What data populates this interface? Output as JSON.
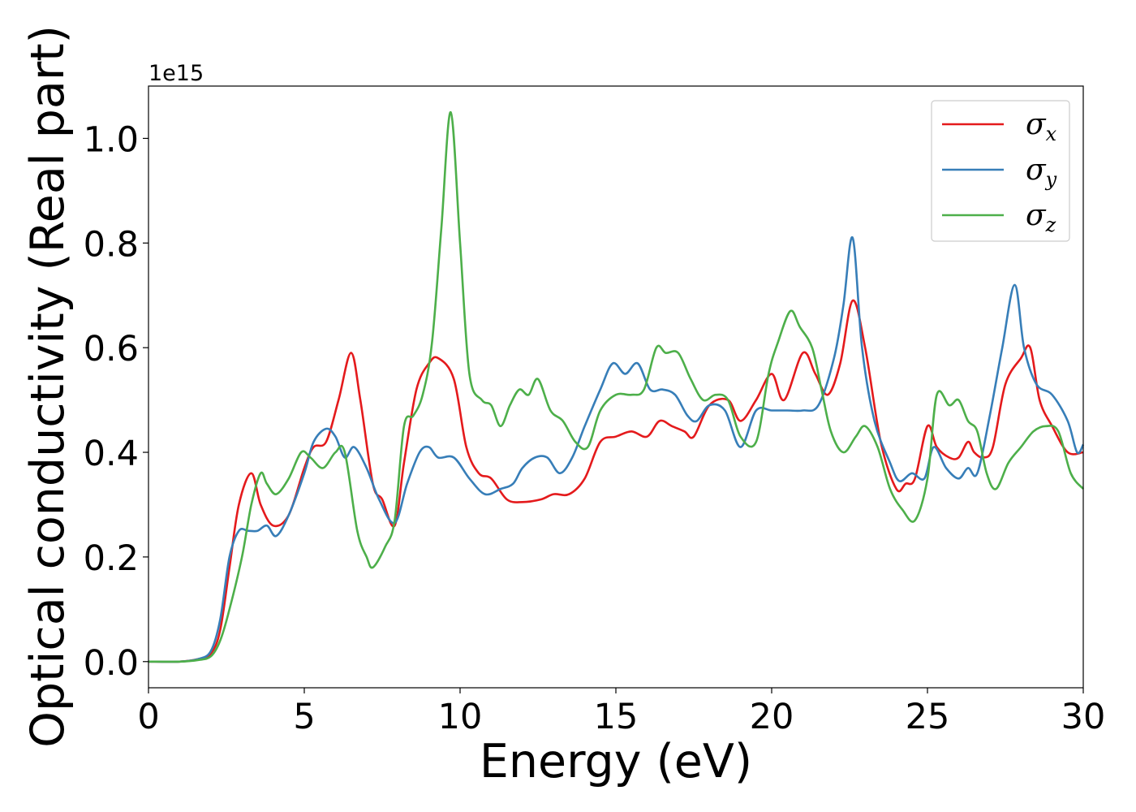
{
  "chart_data": {
    "type": "line",
    "xlabel": "Energy (eV)",
    "ylabel": "Optical conductivity (Real part)",
    "offset_text": "1e15",
    "xlim": [
      0,
      30
    ],
    "ylim": [
      -0.05,
      1.1
    ],
    "x_ticks": [
      0,
      5,
      10,
      15,
      20,
      25,
      30
    ],
    "x_tick_labels": [
      "0",
      "5",
      "10",
      "15",
      "20",
      "25",
      "30"
    ],
    "y_ticks": [
      0.0,
      0.2,
      0.4,
      0.6,
      0.8,
      1.0
    ],
    "y_tick_labels": [
      "0.0",
      "0.2",
      "0.4",
      "0.6",
      "0.8",
      "1.0"
    ],
    "grid": false,
    "legend_position": "top-right",
    "series": [
      {
        "name": "σx",
        "symbol": "σ",
        "sub": "x",
        "color": "#e41a1c",
        "x": [
          0,
          1,
          1.6,
          2,
          2.3,
          2.6,
          2.9,
          3.3,
          3.6,
          4.0,
          4.5,
          5.0,
          5.3,
          5.7,
          6.1,
          6.5,
          6.8,
          7.2,
          7.5,
          7.9,
          8.2,
          8.6,
          9.0,
          9.3,
          9.8,
          10.2,
          10.6,
          11.0,
          11.5,
          12.0,
          12.6,
          13.0,
          13.5,
          14.0,
          14.5,
          15.0,
          15.5,
          16.0,
          16.4,
          16.8,
          17.2,
          17.5,
          18.0,
          18.6,
          19.0,
          19.5,
          20.0,
          20.4,
          21.0,
          21.4,
          21.8,
          22.2,
          22.6,
          23.0,
          23.5,
          24.0,
          24.3,
          24.6,
          25.0,
          25.3,
          25.7,
          26.0,
          26.3,
          26.5,
          26.8,
          27.1,
          27.5,
          28.0,
          28.3,
          28.6,
          29.0,
          29.5,
          30.0
        ],
        "values": [
          0.0,
          0.0,
          0.005,
          0.015,
          0.06,
          0.18,
          0.3,
          0.36,
          0.3,
          0.26,
          0.28,
          0.37,
          0.41,
          0.42,
          0.5,
          0.59,
          0.5,
          0.34,
          0.31,
          0.26,
          0.38,
          0.52,
          0.57,
          0.58,
          0.54,
          0.41,
          0.36,
          0.35,
          0.31,
          0.305,
          0.31,
          0.32,
          0.32,
          0.35,
          0.42,
          0.43,
          0.44,
          0.43,
          0.46,
          0.45,
          0.44,
          0.43,
          0.49,
          0.5,
          0.46,
          0.5,
          0.55,
          0.5,
          0.59,
          0.55,
          0.51,
          0.57,
          0.69,
          0.6,
          0.42,
          0.33,
          0.34,
          0.35,
          0.45,
          0.41,
          0.39,
          0.39,
          0.42,
          0.4,
          0.39,
          0.41,
          0.53,
          0.58,
          0.6,
          0.5,
          0.45,
          0.4,
          0.4
        ]
      },
      {
        "name": "σy",
        "symbol": "σ",
        "sub": "y",
        "color": "#377eb8",
        "x": [
          0,
          1,
          1.6,
          2,
          2.3,
          2.6,
          2.9,
          3.2,
          3.5,
          3.8,
          4.1,
          4.5,
          5.0,
          5.3,
          5.7,
          6.0,
          6.3,
          6.6,
          7.0,
          7.4,
          7.9,
          8.3,
          8.7,
          9.0,
          9.3,
          9.8,
          10.3,
          10.8,
          11.3,
          11.7,
          12.0,
          12.4,
          12.8,
          13.2,
          13.6,
          14.0,
          14.5,
          14.9,
          15.3,
          15.7,
          16.1,
          16.5,
          16.9,
          17.3,
          17.6,
          18.0,
          18.5,
          19.0,
          19.5,
          20.0,
          20.5,
          21.0,
          21.5,
          22.0,
          22.3,
          22.6,
          22.9,
          23.3,
          23.8,
          24.1,
          24.5,
          24.9,
          25.2,
          25.6,
          26.0,
          26.3,
          26.6,
          27.0,
          27.4,
          27.8,
          28.1,
          28.5,
          29.0,
          29.5,
          29.8,
          30.0
        ],
        "values": [
          0.0,
          0.0,
          0.005,
          0.02,
          0.08,
          0.2,
          0.25,
          0.25,
          0.25,
          0.26,
          0.24,
          0.28,
          0.36,
          0.42,
          0.445,
          0.43,
          0.39,
          0.41,
          0.37,
          0.31,
          0.265,
          0.34,
          0.4,
          0.41,
          0.39,
          0.39,
          0.35,
          0.32,
          0.33,
          0.34,
          0.37,
          0.39,
          0.39,
          0.36,
          0.39,
          0.45,
          0.52,
          0.57,
          0.55,
          0.57,
          0.52,
          0.52,
          0.51,
          0.47,
          0.46,
          0.49,
          0.48,
          0.41,
          0.48,
          0.48,
          0.48,
          0.48,
          0.49,
          0.58,
          0.68,
          0.81,
          0.6,
          0.46,
          0.38,
          0.345,
          0.36,
          0.35,
          0.41,
          0.37,
          0.35,
          0.37,
          0.36,
          0.47,
          0.6,
          0.72,
          0.6,
          0.53,
          0.51,
          0.46,
          0.4,
          0.415
        ]
      },
      {
        "name": "σz",
        "symbol": "σ",
        "sub": "z",
        "color": "#4daf4a",
        "x": [
          0,
          1,
          1.6,
          2,
          2.3,
          2.6,
          3.0,
          3.3,
          3.6,
          3.8,
          4.1,
          4.5,
          4.9,
          5.2,
          5.6,
          6.0,
          6.3,
          6.7,
          7.0,
          7.2,
          7.6,
          7.9,
          8.2,
          8.5,
          8.8,
          9.1,
          9.4,
          9.7,
          10.0,
          10.3,
          10.7,
          11.0,
          11.3,
          11.6,
          11.9,
          12.2,
          12.5,
          12.9,
          13.3,
          13.7,
          14.1,
          14.5,
          15.0,
          15.5,
          15.9,
          16.3,
          16.6,
          17.0,
          17.4,
          17.8,
          18.2,
          18.6,
          19.0,
          19.5,
          19.9,
          20.2,
          20.6,
          20.9,
          21.3,
          21.6,
          21.9,
          22.3,
          22.7,
          23.0,
          23.4,
          23.8,
          24.2,
          24.6,
          25.0,
          25.3,
          25.7,
          26.0,
          26.3,
          26.6,
          26.9,
          27.2,
          27.6,
          28.0,
          28.4,
          28.8,
          29.2,
          29.6,
          30.0
        ],
        "values": [
          0.0,
          0.0,
          0.003,
          0.01,
          0.04,
          0.1,
          0.2,
          0.3,
          0.36,
          0.34,
          0.32,
          0.35,
          0.4,
          0.39,
          0.37,
          0.4,
          0.4,
          0.25,
          0.2,
          0.18,
          0.22,
          0.27,
          0.45,
          0.47,
          0.51,
          0.61,
          0.83,
          1.05,
          0.8,
          0.55,
          0.5,
          0.49,
          0.45,
          0.49,
          0.52,
          0.51,
          0.54,
          0.48,
          0.46,
          0.42,
          0.41,
          0.48,
          0.51,
          0.51,
          0.52,
          0.6,
          0.59,
          0.59,
          0.54,
          0.5,
          0.51,
          0.5,
          0.43,
          0.42,
          0.55,
          0.61,
          0.67,
          0.64,
          0.6,
          0.52,
          0.44,
          0.4,
          0.43,
          0.45,
          0.41,
          0.33,
          0.29,
          0.27,
          0.35,
          0.51,
          0.49,
          0.5,
          0.46,
          0.44,
          0.36,
          0.33,
          0.38,
          0.41,
          0.44,
          0.45,
          0.44,
          0.36,
          0.33
        ]
      }
    ]
  }
}
